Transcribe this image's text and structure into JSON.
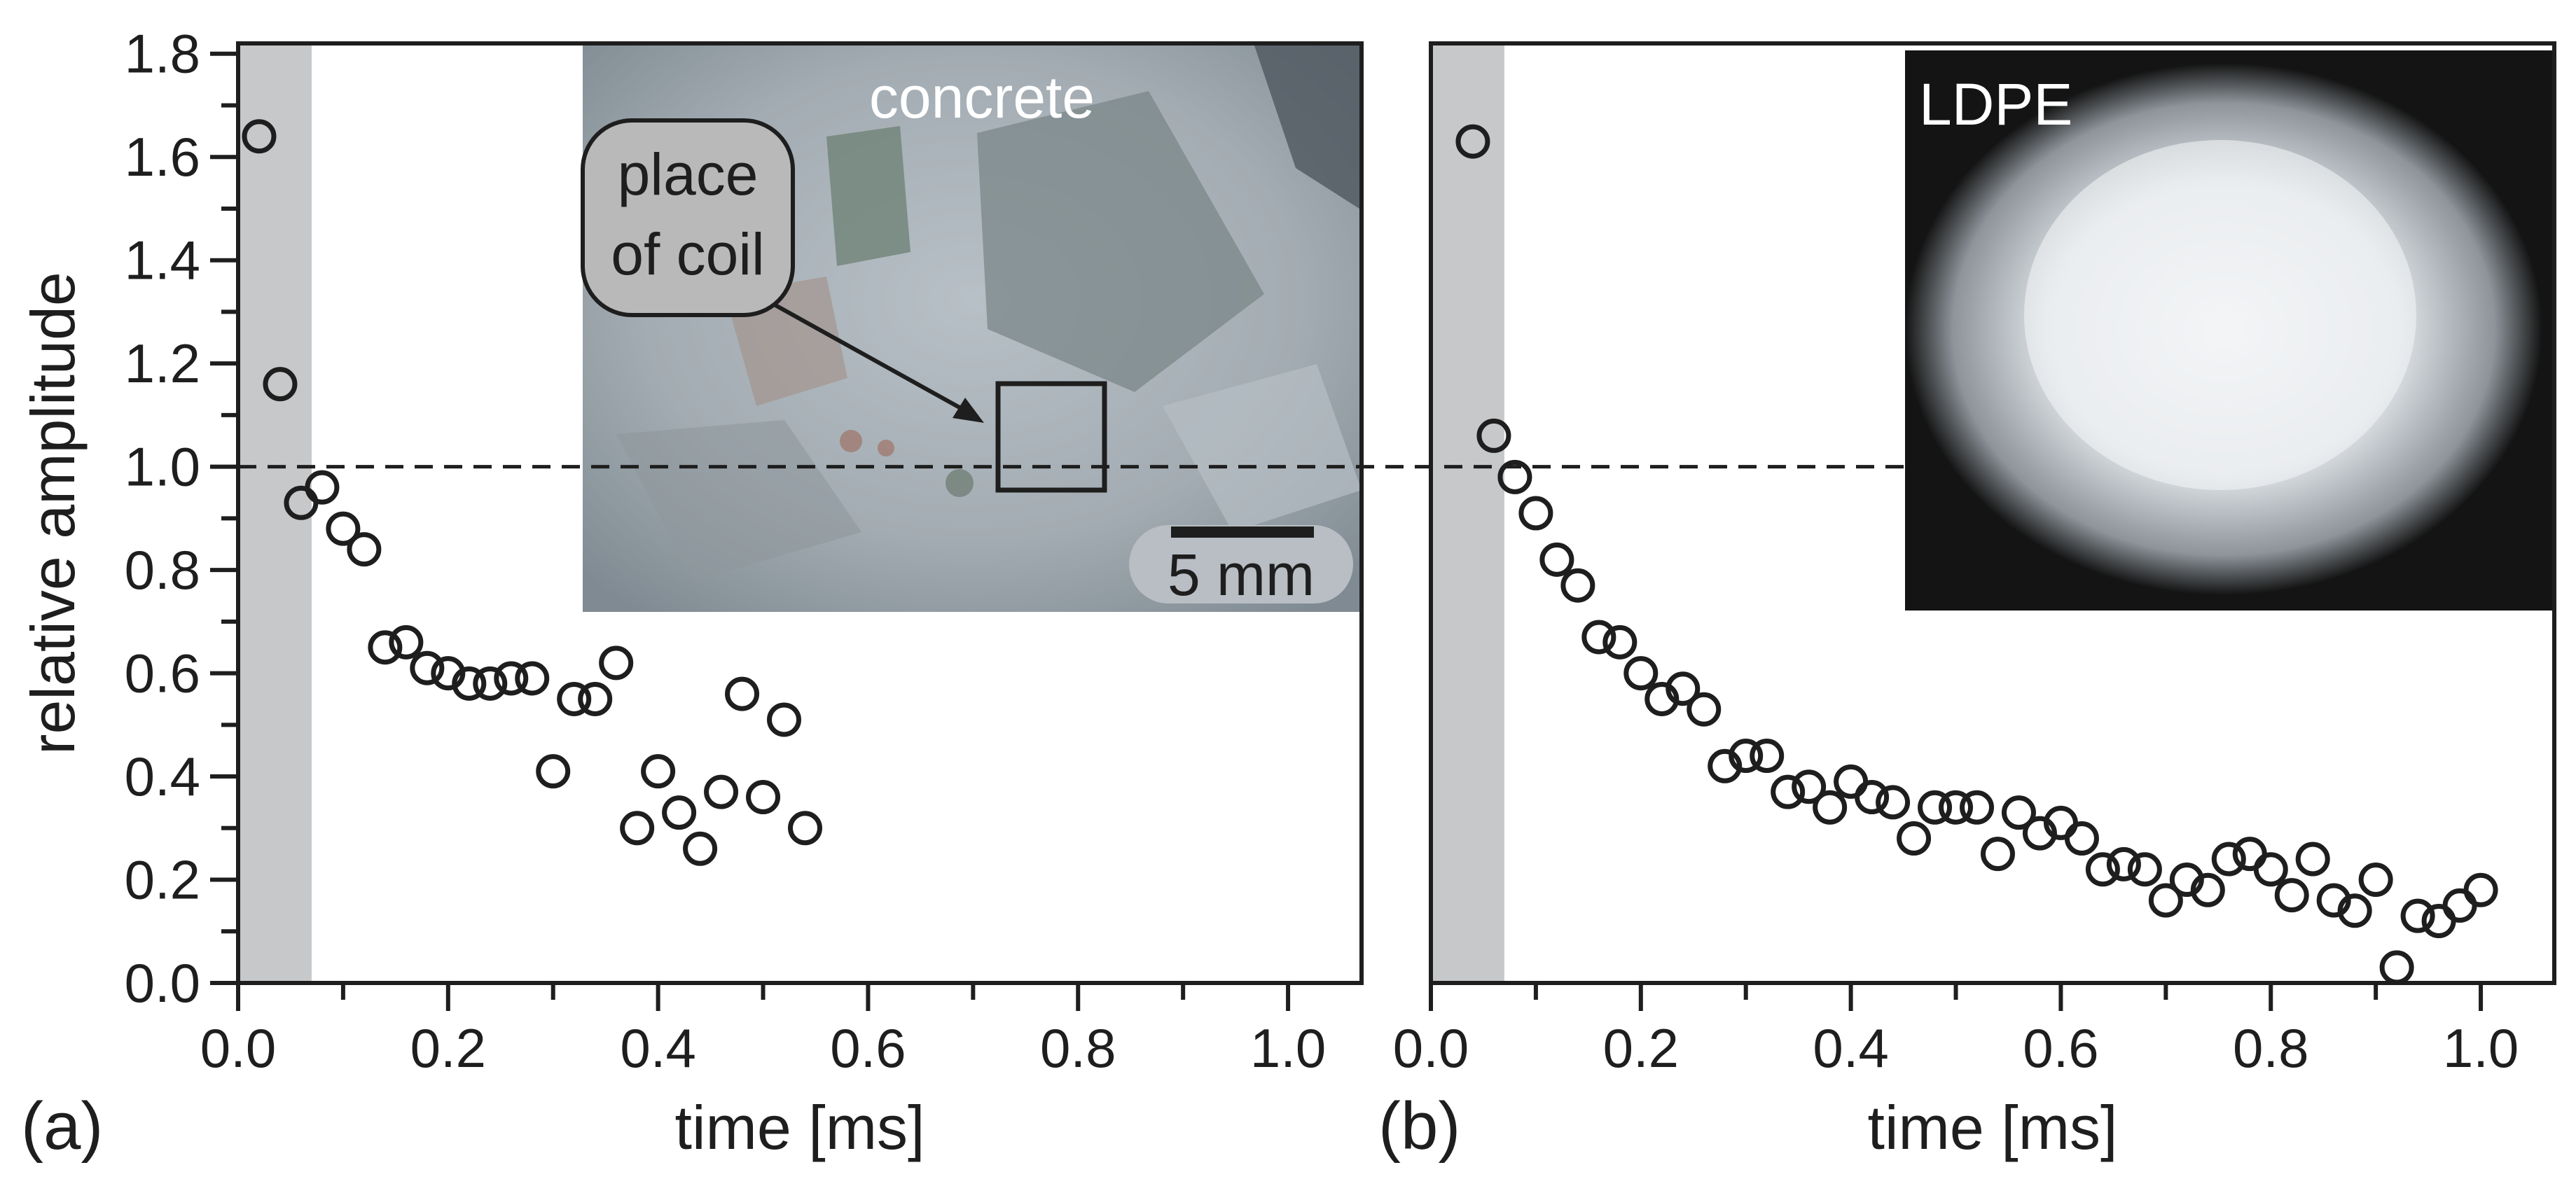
{
  "chart_data": [
    {
      "id": "a",
      "type": "scatter",
      "panel_label": "(a)",
      "xlabel": "time [ms]",
      "ylabel": "relative amplitude",
      "xlim": [
        0.0,
        1.07
      ],
      "ylim": [
        0.0,
        1.82
      ],
      "xticks": [
        0.0,
        0.2,
        0.4,
        0.6,
        0.8,
        1.0
      ],
      "xtick_labels": [
        "0.0",
        "0.2",
        "0.4",
        "0.6",
        "0.8",
        "1.0"
      ],
      "yticks": [
        0.0,
        0.2,
        0.4,
        0.6,
        0.8,
        1.0,
        1.2,
        1.4,
        1.6,
        1.8
      ],
      "ytick_labels": [
        "0.0",
        "0.2",
        "0.4",
        "0.6",
        "0.8",
        "1.0",
        "1.2",
        "1.4",
        "1.6",
        "1.8"
      ],
      "reference_line_y": 1.0,
      "shaded_x_range": [
        0.0,
        0.07
      ],
      "marker": "open-circle",
      "x": [
        0.02,
        0.04,
        0.06,
        0.08,
        0.1,
        0.12,
        0.14,
        0.16,
        0.18,
        0.2,
        0.22,
        0.24,
        0.26,
        0.28,
        0.3,
        0.32,
        0.34,
        0.36,
        0.38,
        0.4,
        0.42,
        0.44,
        0.46,
        0.48,
        0.5,
        0.52,
        0.54
      ],
      "y": [
        1.64,
        1.16,
        0.93,
        0.96,
        0.88,
        0.84,
        0.65,
        0.66,
        0.61,
        0.6,
        0.58,
        0.58,
        0.59,
        0.59,
        0.41,
        0.55,
        0.55,
        0.62,
        0.3,
        0.41,
        0.33,
        0.26,
        0.37,
        0.56,
        0.36,
        0.51,
        0.3
      ],
      "inset": {
        "title": "concrete",
        "callout": [
          "place",
          "of coil"
        ],
        "scale_bar": "5 mm"
      }
    },
    {
      "id": "b",
      "type": "scatter",
      "panel_label": "(b)",
      "xlabel": "time [ms]",
      "xlim": [
        0.0,
        1.07
      ],
      "ylim": [
        0.0,
        1.82
      ],
      "xticks": [
        0.0,
        0.2,
        0.4,
        0.6,
        0.8,
        1.0
      ],
      "xtick_labels": [
        "0.0",
        "0.2",
        "0.4",
        "0.6",
        "0.8",
        "1.0"
      ],
      "reference_line_y": 1.0,
      "shaded_x_range": [
        0.0,
        0.07
      ],
      "marker": "open-circle",
      "x": [
        0.04,
        0.06,
        0.08,
        0.1,
        0.12,
        0.14,
        0.16,
        0.18,
        0.2,
        0.22,
        0.24,
        0.26,
        0.28,
        0.3,
        0.32,
        0.34,
        0.36,
        0.38,
        0.4,
        0.42,
        0.44,
        0.46,
        0.48,
        0.5,
        0.52,
        0.54,
        0.56,
        0.58,
        0.6,
        0.62,
        0.64,
        0.66,
        0.68,
        0.7,
        0.72,
        0.74,
        0.76,
        0.78,
        0.8,
        0.82,
        0.84,
        0.86,
        0.88,
        0.9,
        0.92,
        0.94,
        0.96,
        0.98,
        1.0
      ],
      "y": [
        1.63,
        1.06,
        0.98,
        0.91,
        0.82,
        0.77,
        0.67,
        0.66,
        0.6,
        0.55,
        0.57,
        0.53,
        0.42,
        0.44,
        0.44,
        0.37,
        0.38,
        0.34,
        0.39,
        0.36,
        0.35,
        0.28,
        0.34,
        0.34,
        0.34,
        0.25,
        0.33,
        0.29,
        0.31,
        0.28,
        0.22,
        0.23,
        0.22,
        0.16,
        0.2,
        0.18,
        0.24,
        0.25,
        0.22,
        0.17,
        0.24,
        0.16,
        0.14,
        0.2,
        0.03,
        0.13,
        0.12,
        0.15,
        0.18
      ],
      "inset": {
        "title": "LDPE"
      }
    }
  ],
  "colors": {
    "ink": "#1e1e1e",
    "shade": "#c7c8ca",
    "concrete_photo": "#a8b1b7",
    "ldpe_photo_bg": "#141414",
    "callout_fill": "#b9b9b9",
    "scale_bar_fill": "#b8bec4"
  }
}
